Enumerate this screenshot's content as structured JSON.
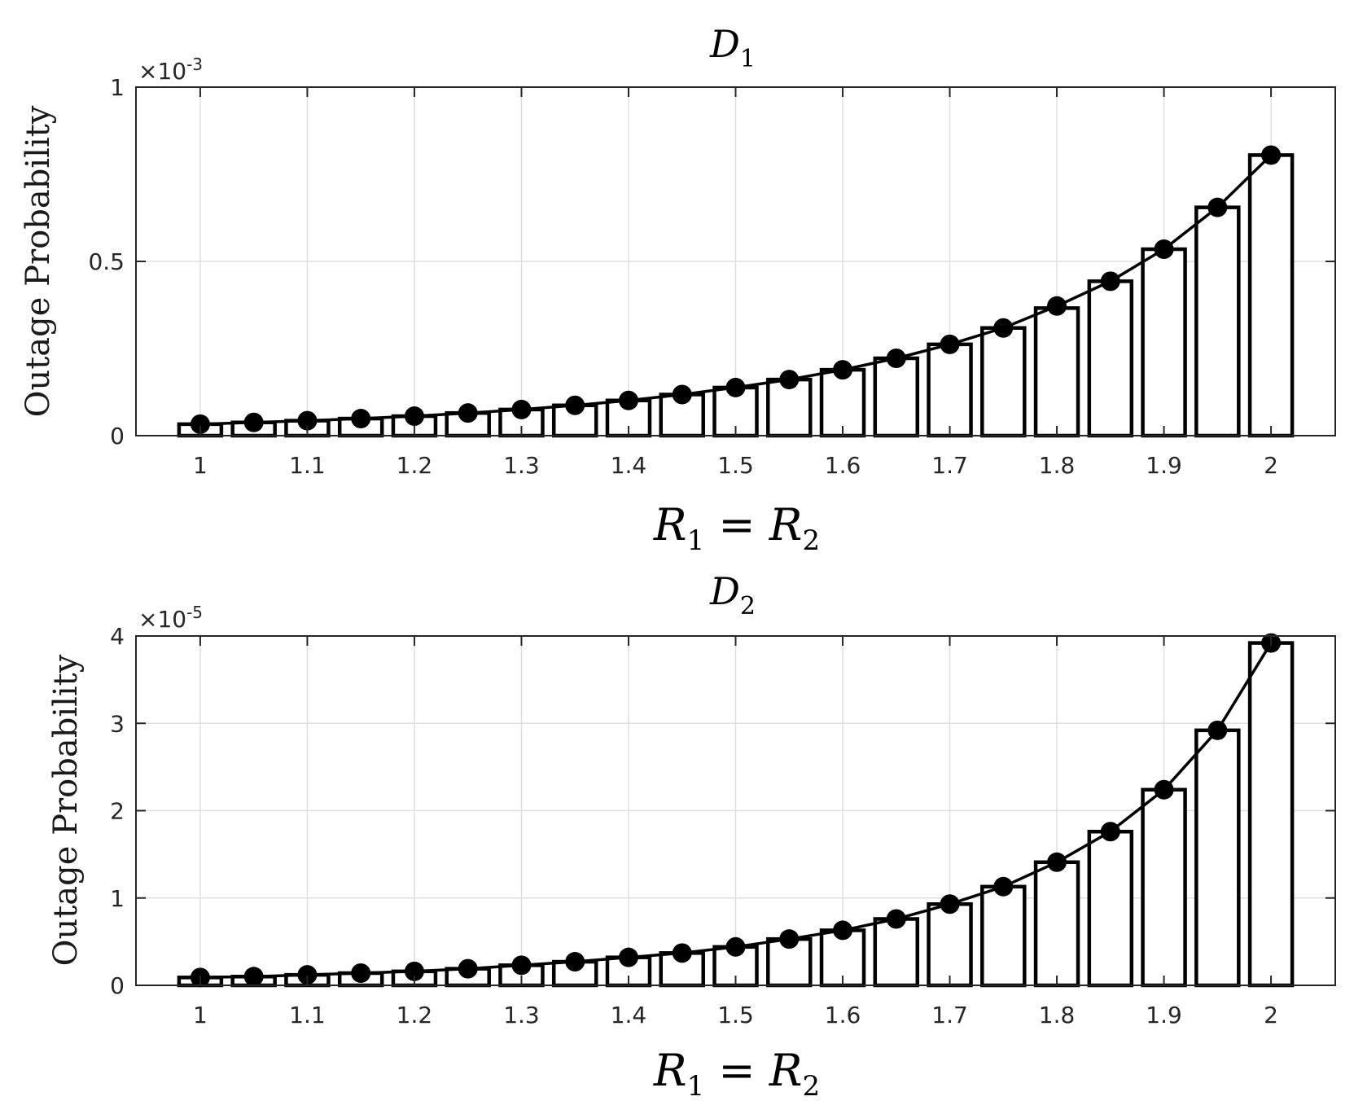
{
  "chart_data": [
    {
      "type": "bar",
      "title": "D",
      "title_subscript": "1",
      "xlabel": "R1 = R2",
      "ylabel": "Outage Probability",
      "y_multiplier": "×10",
      "y_multiplier_exponent": "-3",
      "x": [
        1.0,
        1.05,
        1.1,
        1.15,
        1.2,
        1.25,
        1.3,
        1.35,
        1.4,
        1.45,
        1.5,
        1.55,
        1.6,
        1.65,
        1.7,
        1.75,
        1.8,
        1.85,
        1.9,
        1.95,
        2.0
      ],
      "x_ticks": [
        1,
        1.1,
        1.2,
        1.3,
        1.4,
        1.5,
        1.6,
        1.7,
        1.8,
        1.9,
        2
      ],
      "x_tick_labels": [
        "1",
        "1.1",
        "1.2",
        "1.3",
        "1.4",
        "1.5",
        "1.6",
        "1.7",
        "1.8",
        "1.9",
        "2"
      ],
      "xlim": [
        0.94,
        2.06
      ],
      "y_ticks": [
        0,
        0.5,
        1
      ],
      "y_tick_labels": [
        "0",
        "0.5",
        "1"
      ],
      "ylim": [
        0,
        1
      ],
      "series": [
        {
          "kind": "bar",
          "values": [
            0.033,
            0.038,
            0.043,
            0.049,
            0.056,
            0.065,
            0.075,
            0.087,
            0.101,
            0.118,
            0.138,
            0.161,
            0.189,
            0.222,
            0.262,
            0.309,
            0.366,
            0.443,
            0.535,
            0.655,
            0.805
          ]
        },
        {
          "kind": "line-marker",
          "values": [
            0.033,
            0.038,
            0.043,
            0.049,
            0.056,
            0.065,
            0.075,
            0.087,
            0.101,
            0.118,
            0.138,
            0.161,
            0.189,
            0.222,
            0.262,
            0.309,
            0.372,
            0.443,
            0.535,
            0.655,
            0.805
          ]
        }
      ],
      "grid": true,
      "color": "#000000"
    },
    {
      "type": "bar",
      "title": "D",
      "title_subscript": "2",
      "xlabel": "R1 = R2",
      "ylabel": "Outage Probability",
      "y_multiplier": "×10",
      "y_multiplier_exponent": "-5",
      "x": [
        1.0,
        1.05,
        1.1,
        1.15,
        1.2,
        1.25,
        1.3,
        1.35,
        1.4,
        1.45,
        1.5,
        1.55,
        1.6,
        1.65,
        1.7,
        1.75,
        1.8,
        1.85,
        1.9,
        1.95,
        2.0
      ],
      "x_ticks": [
        1,
        1.1,
        1.2,
        1.3,
        1.4,
        1.5,
        1.6,
        1.7,
        1.8,
        1.9,
        2
      ],
      "x_tick_labels": [
        "1",
        "1.1",
        "1.2",
        "1.3",
        "1.4",
        "1.5",
        "1.6",
        "1.7",
        "1.8",
        "1.9",
        "2"
      ],
      "xlim": [
        0.94,
        2.06
      ],
      "y_ticks": [
        0,
        1,
        2,
        3,
        4
      ],
      "y_tick_labels": [
        "0",
        "1",
        "2",
        "3",
        "4"
      ],
      "ylim": [
        0,
        4
      ],
      "series": [
        {
          "kind": "bar",
          "values": [
            0.09,
            0.1,
            0.12,
            0.14,
            0.16,
            0.19,
            0.23,
            0.27,
            0.32,
            0.37,
            0.44,
            0.53,
            0.63,
            0.76,
            0.93,
            1.13,
            1.41,
            1.76,
            2.24,
            2.92,
            3.92
          ]
        },
        {
          "kind": "line-marker",
          "values": [
            0.09,
            0.1,
            0.12,
            0.14,
            0.16,
            0.19,
            0.23,
            0.27,
            0.32,
            0.37,
            0.44,
            0.53,
            0.63,
            0.76,
            0.93,
            1.13,
            1.41,
            1.76,
            2.24,
            2.92,
            3.92
          ]
        }
      ],
      "grid": true,
      "color": "#000000"
    }
  ]
}
